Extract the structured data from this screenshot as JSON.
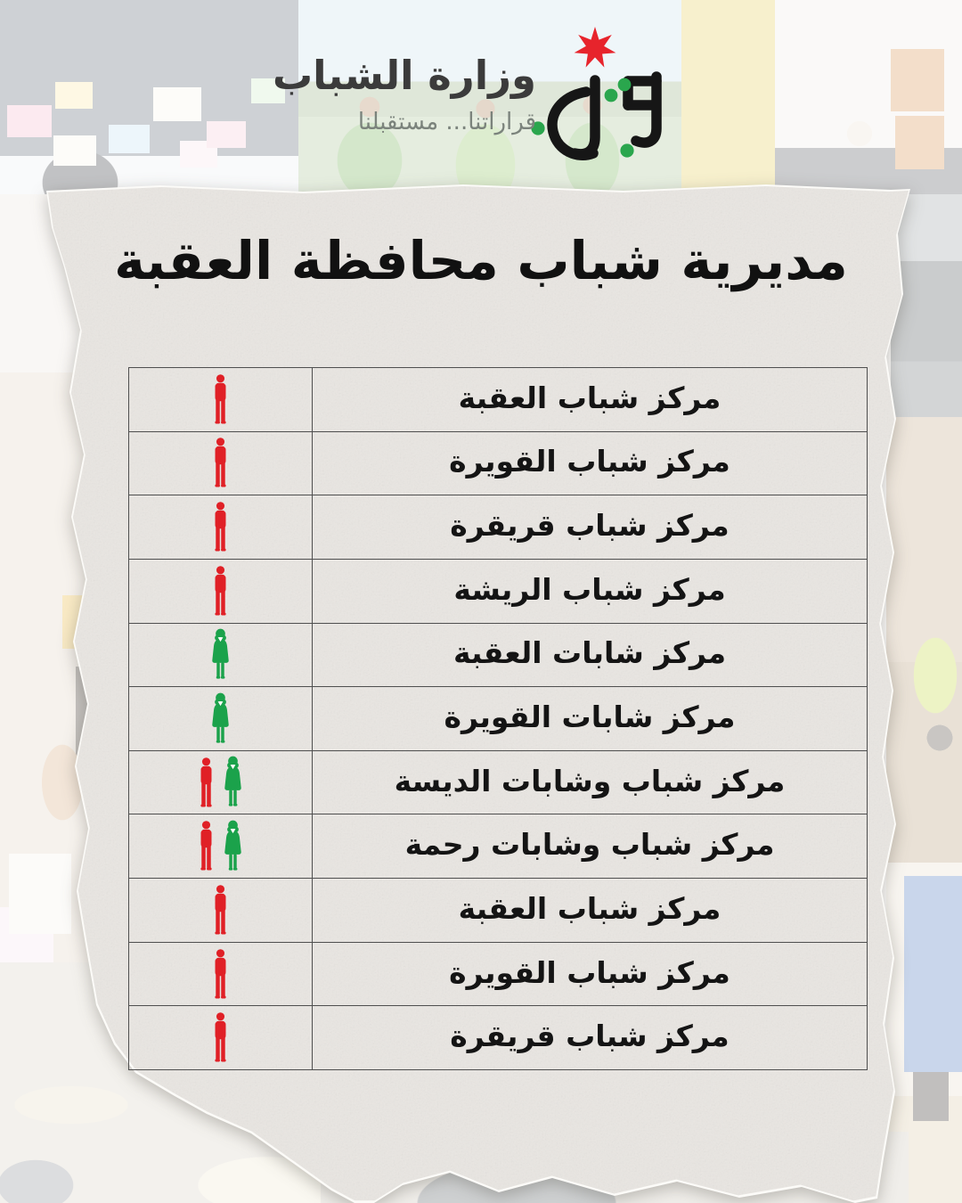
{
  "logo": {
    "ministry_name": "وزارة الشباب",
    "tagline": "قراراتنا... مستقبلنا",
    "mark": "ministry-of-youth-calligraphy",
    "star": "red-seven-pointed-star"
  },
  "title": "مديرية شباب محافظة العقبة",
  "table": {
    "rows": [
      {
        "label": "مركز شباب العقبة",
        "icons": [
          "male"
        ]
      },
      {
        "label": "مركز شباب القويرة",
        "icons": [
          "male"
        ]
      },
      {
        "label": "مركز شباب قريقرة",
        "icons": [
          "male"
        ]
      },
      {
        "label": "مركز شباب الريشة",
        "icons": [
          "male"
        ]
      },
      {
        "label": "مركز شابات العقبة",
        "icons": [
          "female"
        ]
      },
      {
        "label": "مركز شابات القويرة",
        "icons": [
          "female"
        ]
      },
      {
        "label": "مركز شباب وشابات الديسة",
        "icons": [
          "male",
          "female"
        ]
      },
      {
        "label": "مركز شباب وشابات رحمة",
        "icons": [
          "male",
          "female"
        ]
      },
      {
        "label": "مركز شباب العقبة",
        "icons": [
          "male"
        ]
      },
      {
        "label": "مركز شباب القويرة",
        "icons": [
          "male"
        ]
      },
      {
        "label": "مركز شباب قريقرة",
        "icons": [
          "male"
        ]
      }
    ]
  },
  "colors": {
    "male_icon": "#e02026",
    "female_icon": "#1ba24b",
    "star": "#e7242c",
    "logo_dots": "#2aa64d",
    "logo_ink": "#161616",
    "table_line": "#4f4f4f",
    "paper": "#e9e6e2",
    "title_text": "#111111",
    "wordmark_text": "#3b3b3b",
    "tagline_text": "#7b837c"
  }
}
